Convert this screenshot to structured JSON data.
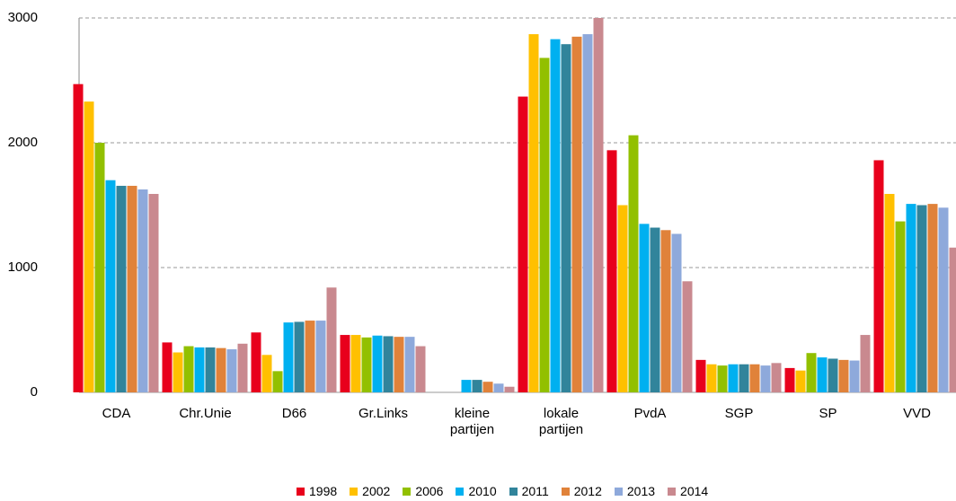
{
  "chart_data": {
    "type": "bar",
    "categories": [
      "CDA",
      "Chr.Unie",
      "D66",
      "Gr.Links",
      "kleine partijen",
      "lokale partijen",
      "PvdA",
      "SGP",
      "SP",
      "VVD"
    ],
    "series": [
      {
        "name": "1998",
        "color": "#e8001c",
        "values": [
          2470,
          400,
          480,
          460,
          null,
          2370,
          1940,
          260,
          195,
          1860
        ]
      },
      {
        "name": "2002",
        "color": "#ffc000",
        "values": [
          2330,
          320,
          300,
          460,
          null,
          2870,
          1500,
          225,
          175,
          1590
        ]
      },
      {
        "name": "2006",
        "color": "#92c000",
        "values": [
          2000,
          370,
          170,
          440,
          null,
          2680,
          2060,
          215,
          315,
          1370
        ]
      },
      {
        "name": "2010",
        "color": "#00b0f0",
        "values": [
          1700,
          360,
          560,
          455,
          100,
          2830,
          1350,
          225,
          280,
          1510
        ]
      },
      {
        "name": "2011",
        "color": "#31849b",
        "values": [
          1655,
          360,
          565,
          450,
          100,
          2790,
          1320,
          225,
          270,
          1500
        ]
      },
      {
        "name": "2012",
        "color": "#e0823a",
        "values": [
          1655,
          355,
          575,
          445,
          85,
          2850,
          1300,
          225,
          260,
          1510
        ]
      },
      {
        "name": "2013",
        "color": "#8ea9db",
        "values": [
          1626,
          345,
          575,
          445,
          70,
          2870,
          1270,
          215,
          255,
          1480
        ]
      },
      {
        "name": "2014",
        "color": "#c9898f",
        "values": [
          1590,
          390,
          840,
          370,
          45,
          3000,
          890,
          235,
          460,
          1160
        ]
      }
    ],
    "ylim": [
      0,
      3000
    ],
    "yticks": [
      0,
      1000,
      2000,
      3000
    ],
    "grid": true
  }
}
